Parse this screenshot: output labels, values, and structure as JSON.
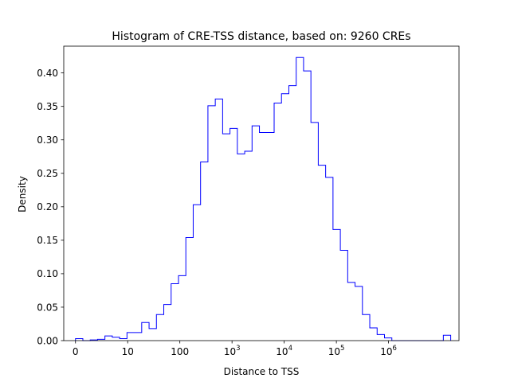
{
  "chart_data": {
    "type": "histogram",
    "title": "Histogram of CRE-TSS distance, based on: 9260 CREs",
    "xlabel": "Distance to TSS",
    "ylabel": "Density",
    "x_scale": "symlog (linear below 10)",
    "xlim": [
      -0.45,
      14.7
    ],
    "ylim": [
      0,
      0.44
    ],
    "grid": false,
    "legend": "none",
    "color": "#0000ff",
    "x_ticks": [
      {
        "pos": 0,
        "base": "0",
        "exp": ""
      },
      {
        "pos": 2,
        "base": "10",
        "exp": ""
      },
      {
        "pos": 4,
        "base": "100",
        "exp": ""
      },
      {
        "pos": 6,
        "base": "10",
        "exp": "3"
      },
      {
        "pos": 8,
        "base": "10",
        "exp": "4"
      },
      {
        "pos": 10,
        "base": "10",
        "exp": "5"
      },
      {
        "pos": 12,
        "base": "10",
        "exp": "6"
      }
    ],
    "y_ticks": [
      "0.00",
      "0.05",
      "0.10",
      "0.15",
      "0.20",
      "0.25",
      "0.30",
      "0.35",
      "0.40"
    ],
    "bin_edges": [
      0,
      0.282,
      0.564,
      0.846,
      1.128,
      1.41,
      1.692,
      1.974,
      2.256,
      2.538,
      2.82,
      3.102,
      3.384,
      3.666,
      3.948,
      4.23,
      4.512,
      4.794,
      5.076,
      5.358,
      5.64,
      5.922,
      6.204,
      6.486,
      6.768,
      7.05,
      7.332,
      7.614,
      7.896,
      8.178,
      8.46,
      8.742,
      9.024,
      9.306,
      9.588,
      9.87,
      10.152,
      10.434,
      10.716,
      10.998,
      11.28,
      11.562,
      11.844,
      12.126,
      12.408,
      12.69,
      12.972,
      13.254,
      13.536,
      13.818,
      14.1,
      14.382
    ],
    "densities": [
      0.003,
      0.0,
      0.001,
      0.002,
      0.007,
      0.005,
      0.003,
      0.012,
      0.012,
      0.027,
      0.018,
      0.039,
      0.054,
      0.085,
      0.097,
      0.154,
      0.203,
      0.267,
      0.351,
      0.361,
      0.309,
      0.317,
      0.279,
      0.283,
      0.321,
      0.311,
      0.311,
      0.355,
      0.369,
      0.381,
      0.423,
      0.403,
      0.326,
      0.262,
      0.244,
      0.166,
      0.135,
      0.087,
      0.081,
      0.039,
      0.019,
      0.009,
      0.004,
      0.0,
      0.0,
      0.0,
      0.0,
      0.0,
      0.0,
      0.0,
      0.008
    ]
  }
}
